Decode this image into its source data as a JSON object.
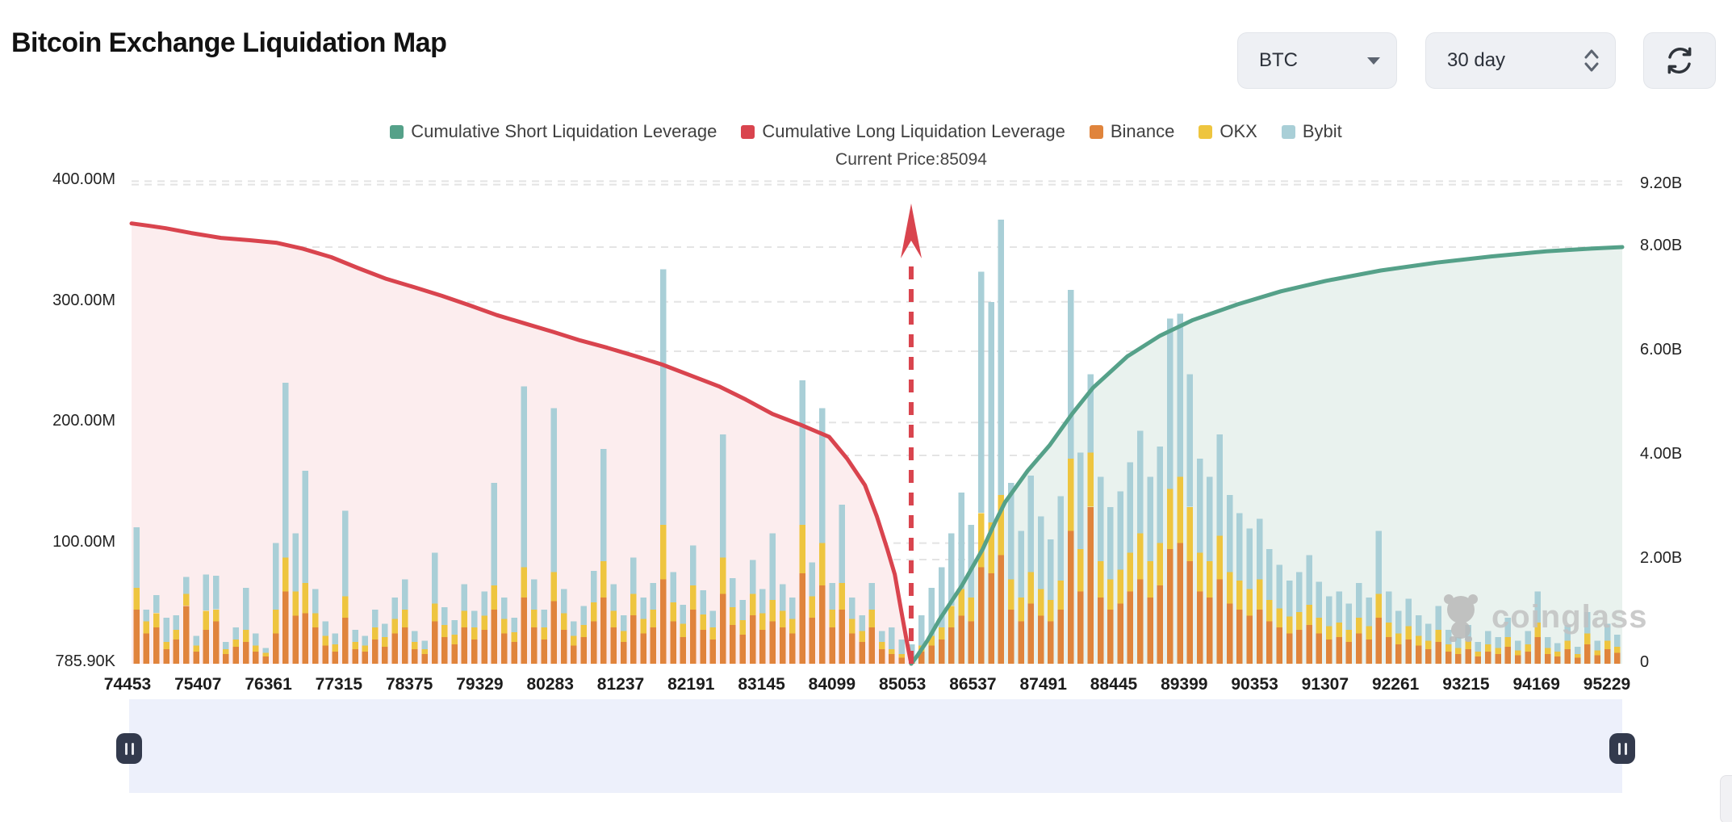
{
  "header": {
    "title": "Bitcoin Exchange Liquidation Map",
    "coin_select": {
      "value": "BTC"
    },
    "period_select": {
      "value": "30 day"
    },
    "refresh_button": "refresh"
  },
  "legend": {
    "items": [
      {
        "label": "Cumulative Short Liquidation Leverage",
        "color": "#55a189"
      },
      {
        "label": "Cumulative Long Liquidation Leverage",
        "color": "#d9444e"
      },
      {
        "label": "Binance",
        "color": "#e0843c"
      },
      {
        "label": "OKX",
        "color": "#eec53f"
      },
      {
        "label": "Bybit",
        "color": "#a9cfd7"
      }
    ]
  },
  "current_price": {
    "label": "Current Price:85094",
    "value": 85094
  },
  "watermark": {
    "text": "coinglass"
  },
  "colors": {
    "binance": "#e0843c",
    "okx": "#eec53f",
    "bybit": "#a9cfd7",
    "long_line": "#d9444e",
    "long_fill": "#fcedee",
    "short_line": "#55a189",
    "short_fill": "#e9f2ee",
    "grid": "#e4e4e4",
    "arrow": "#d9444e"
  },
  "chart_data": {
    "type": "composite",
    "title": "Bitcoin Exchange Liquidation Map",
    "legend_position": "top-center",
    "grid": "dashed-horizontal",
    "y_left": {
      "unit": "USD millions",
      "min_label": "785.90K",
      "min": 0.7859,
      "max": 400,
      "tick_labels": [
        "400.00M",
        "300.00M",
        "200.00M",
        "100.00M",
        "785.90K"
      ],
      "tick_values": [
        400,
        300,
        200,
        100,
        0.7859
      ]
    },
    "y_right": {
      "unit": "USD billions",
      "min": 0,
      "max": 9.2,
      "tick_labels": [
        "9.20B",
        "8.00B",
        "6.00B",
        "4.00B",
        "2.00B",
        "0"
      ],
      "tick_values": [
        9.2,
        8,
        6,
        4,
        2,
        0
      ]
    },
    "x_axis": {
      "label_type": "BTC price level",
      "ticks": [
        "74453",
        "75407",
        "76361",
        "77315",
        "78375",
        "79329",
        "80283",
        "81237",
        "82191",
        "83145",
        "84099",
        "85053",
        "86537",
        "87491",
        "88445",
        "89399",
        "90353",
        "91307",
        "92261",
        "93215",
        "94169",
        "95229"
      ]
    },
    "current_price_marker": {
      "value": 85094,
      "style": "red-dashed-vertical-arrow"
    },
    "bars": {
      "stack_order": [
        "Binance",
        "OKX",
        "Bybit"
      ],
      "unit": "USD millions (estimated from pixels)",
      "values": [
        [
          45,
          18,
          50
        ],
        [
          25,
          10,
          10
        ],
        [
          30,
          12,
          15
        ],
        [
          12,
          6,
          20
        ],
        [
          20,
          8,
          12
        ],
        [
          48,
          10,
          14
        ],
        [
          10,
          5,
          8
        ],
        [
          28,
          16,
          30
        ],
        [
          35,
          10,
          28
        ],
        [
          8,
          4,
          6
        ],
        [
          14,
          6,
          10
        ],
        [
          18,
          10,
          35
        ],
        [
          10,
          5,
          10
        ],
        [
          6,
          3,
          4
        ],
        [
          25,
          20,
          55
        ],
        [
          60,
          28,
          145
        ],
        [
          40,
          20,
          48
        ],
        [
          42,
          25,
          93
        ],
        [
          30,
          12,
          20
        ],
        [
          15,
          8,
          12
        ],
        [
          10,
          6,
          9
        ],
        [
          38,
          18,
          71
        ],
        [
          12,
          6,
          10
        ],
        [
          10,
          5,
          8
        ],
        [
          20,
          10,
          15
        ],
        [
          14,
          8,
          11
        ],
        [
          25,
          12,
          18
        ],
        [
          30,
          15,
          25
        ],
        [
          12,
          6,
          9
        ],
        [
          8,
          4,
          7
        ],
        [
          35,
          15,
          42
        ],
        [
          22,
          10,
          15
        ],
        [
          16,
          8,
          12
        ],
        [
          30,
          14,
          22
        ],
        [
          20,
          10,
          14
        ],
        [
          28,
          12,
          20
        ],
        [
          45,
          20,
          85
        ],
        [
          25,
          12,
          18
        ],
        [
          18,
          8,
          12
        ],
        [
          55,
          25,
          150
        ],
        [
          30,
          15,
          25
        ],
        [
          20,
          10,
          15
        ],
        [
          52,
          24,
          136
        ],
        [
          28,
          14,
          20
        ],
        [
          15,
          8,
          12
        ],
        [
          22,
          10,
          16
        ],
        [
          35,
          16,
          26
        ],
        [
          55,
          30,
          93
        ],
        [
          30,
          14,
          22
        ],
        [
          18,
          9,
          13
        ],
        [
          40,
          18,
          30
        ],
        [
          25,
          12,
          18
        ],
        [
          30,
          15,
          22
        ],
        [
          70,
          45,
          212
        ],
        [
          35,
          16,
          25
        ],
        [
          22,
          11,
          16
        ],
        [
          45,
          20,
          33
        ],
        [
          28,
          13,
          20
        ],
        [
          20,
          10,
          14
        ],
        [
          58,
          30,
          102
        ],
        [
          32,
          15,
          24
        ],
        [
          24,
          12,
          17
        ],
        [
          40,
          18,
          28
        ],
        [
          28,
          14,
          20
        ],
        [
          35,
          18,
          55
        ],
        [
          30,
          14,
          22
        ],
        [
          25,
          12,
          18
        ],
        [
          75,
          40,
          120
        ],
        [
          38,
          18,
          28
        ],
        [
          65,
          35,
          112
        ],
        [
          30,
          15,
          22
        ],
        [
          45,
          22,
          65
        ],
        [
          25,
          12,
          18
        ],
        [
          18,
          9,
          13
        ],
        [
          30,
          15,
          22
        ],
        [
          12,
          6,
          9
        ],
        [
          8,
          4,
          18
        ],
        [
          5,
          3,
          12
        ],
        [
          4,
          2,
          10
        ],
        [
          10,
          5,
          25
        ],
        [
          15,
          8,
          40
        ],
        [
          20,
          10,
          50
        ],
        [
          30,
          18,
          60
        ],
        [
          40,
          22,
          80
        ],
        [
          35,
          20,
          60
        ],
        [
          80,
          45,
          200
        ],
        [
          75,
          42,
          183
        ],
        [
          90,
          50,
          228
        ],
        [
          45,
          25,
          80
        ],
        [
          35,
          20,
          55
        ],
        [
          50,
          26,
          80
        ],
        [
          40,
          22,
          60
        ],
        [
          35,
          18,
          50
        ],
        [
          45,
          24,
          70
        ],
        [
          110,
          60,
          140
        ],
        [
          60,
          35,
          80
        ],
        [
          130,
          45,
          65
        ],
        [
          55,
          30,
          70
        ],
        [
          45,
          25,
          60
        ],
        [
          50,
          28,
          65
        ],
        [
          60,
          32,
          75
        ],
        [
          70,
          38,
          85
        ],
        [
          55,
          30,
          70
        ],
        [
          65,
          35,
          80
        ],
        [
          95,
          50,
          141
        ],
        [
          100,
          55,
          135
        ],
        [
          85,
          45,
          110
        ],
        [
          60,
          32,
          78
        ],
        [
          55,
          30,
          70
        ],
        [
          70,
          36,
          84
        ],
        [
          50,
          26,
          64
        ],
        [
          45,
          24,
          56
        ],
        [
          40,
          22,
          50
        ],
        [
          45,
          25,
          50
        ],
        [
          35,
          18,
          42
        ],
        [
          30,
          16,
          36
        ],
        [
          25,
          14,
          30
        ],
        [
          28,
          15,
          33
        ],
        [
          32,
          17,
          41
        ],
        [
          25,
          13,
          30
        ],
        [
          20,
          11,
          25
        ],
        [
          22,
          12,
          26
        ],
        [
          18,
          10,
          22
        ],
        [
          25,
          13,
          29
        ],
        [
          20,
          11,
          24
        ],
        [
          38,
          20,
          52
        ],
        [
          22,
          12,
          26
        ],
        [
          16,
          9,
          19
        ],
        [
          20,
          11,
          23
        ],
        [
          15,
          8,
          17
        ],
        [
          12,
          7,
          14
        ],
        [
          18,
          10,
          20
        ],
        [
          10,
          6,
          12
        ],
        [
          8,
          5,
          9
        ],
        [
          12,
          7,
          13
        ],
        [
          6,
          4,
          8
        ],
        [
          10,
          6,
          11
        ],
        [
          8,
          5,
          9
        ],
        [
          14,
          8,
          16
        ],
        [
          7,
          4,
          8
        ],
        [
          10,
          6,
          11
        ],
        [
          22,
          12,
          26
        ],
        [
          8,
          5,
          9
        ],
        [
          6,
          4,
          7
        ],
        [
          12,
          7,
          13
        ],
        [
          5,
          3,
          6
        ],
        [
          16,
          9,
          18
        ],
        [
          7,
          4,
          8
        ],
        [
          12,
          7,
          14
        ],
        [
          9,
          5,
          10
        ]
      ]
    },
    "lines": [
      {
        "name": "Cumulative Long Liquidation Leverage",
        "axis": "left",
        "unit": "USD millions",
        "points_t_value": [
          [
            0.0,
            365
          ],
          [
            0.012,
            363
          ],
          [
            0.023,
            361
          ],
          [
            0.04,
            357
          ],
          [
            0.06,
            353
          ],
          [
            0.08,
            351
          ],
          [
            0.097,
            349
          ],
          [
            0.115,
            344
          ],
          [
            0.134,
            337
          ],
          [
            0.152,
            328
          ],
          [
            0.171,
            319
          ],
          [
            0.19,
            312
          ],
          [
            0.208,
            305
          ],
          [
            0.227,
            297
          ],
          [
            0.245,
            289
          ],
          [
            0.264,
            282
          ],
          [
            0.283,
            275
          ],
          [
            0.301,
            268
          ],
          [
            0.319,
            262
          ],
          [
            0.338,
            255
          ],
          [
            0.356,
            248
          ],
          [
            0.375,
            239
          ],
          [
            0.394,
            230
          ],
          [
            0.412,
            219
          ],
          [
            0.43,
            207
          ],
          [
            0.449,
            198
          ],
          [
            0.468,
            188
          ],
          [
            0.48,
            170
          ],
          [
            0.492,
            148
          ],
          [
            0.5,
            122
          ],
          [
            0.507,
            95
          ],
          [
            0.512,
            74
          ],
          [
            0.516,
            46
          ],
          [
            0.52,
            19
          ],
          [
            0.523,
            0
          ]
        ]
      },
      {
        "name": "Cumulative Short Liquidation Leverage",
        "axis": "right",
        "unit": "USD billions",
        "points_t_value": [
          [
            0.523,
            0
          ],
          [
            0.527,
            0.15
          ],
          [
            0.534,
            0.45
          ],
          [
            0.542,
            0.85
          ],
          [
            0.557,
            1.5
          ],
          [
            0.571,
            2.2
          ],
          [
            0.579,
            2.7
          ],
          [
            0.586,
            3.1
          ],
          [
            0.601,
            3.7
          ],
          [
            0.616,
            4.2
          ],
          [
            0.631,
            4.8
          ],
          [
            0.645,
            5.3
          ],
          [
            0.668,
            5.9
          ],
          [
            0.69,
            6.3
          ],
          [
            0.712,
            6.6
          ],
          [
            0.742,
            6.9
          ],
          [
            0.771,
            7.15
          ],
          [
            0.801,
            7.35
          ],
          [
            0.838,
            7.55
          ],
          [
            0.875,
            7.7
          ],
          [
            0.912,
            7.82
          ],
          [
            0.949,
            7.92
          ],
          [
            0.979,
            7.97
          ],
          [
            1.0,
            8.0
          ]
        ]
      }
    ]
  }
}
